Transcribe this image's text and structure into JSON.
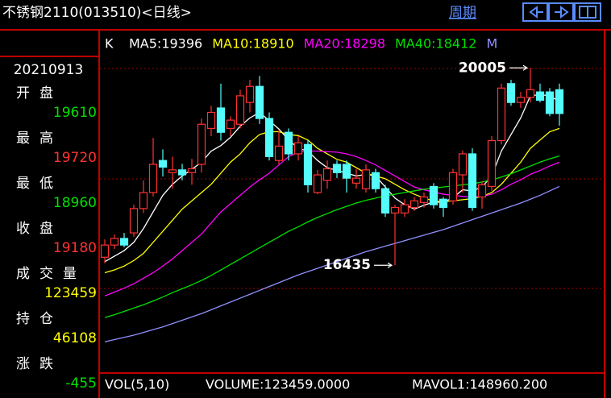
{
  "header": {
    "title": "不锈钢2110(013510)<日线>",
    "period": "周期"
  },
  "left_panel": {
    "date": "20210913",
    "rows": [
      {
        "label": "开盘",
        "value": 19610,
        "color": "#00e000"
      },
      {
        "label": "最高",
        "value": 19720,
        "color": "#ff3232"
      },
      {
        "label": "最低",
        "value": 18960,
        "color": "#00e000"
      },
      {
        "label": "收盘",
        "value": 19180,
        "color": "#ff3232"
      },
      {
        "label": "成交量",
        "value": 123459,
        "color": "#ffff00"
      },
      {
        "label": "持仓",
        "value": 46108,
        "color": "#ffff00"
      },
      {
        "label": "涨跌",
        "value": -455,
        "color": "#00e000"
      }
    ]
  },
  "chart_data": {
    "type": "candlestick",
    "legend_prefix": "K",
    "ylim": [
      14500,
      20650
    ],
    "up_color": "#ff3232",
    "down_color": "#54fcfc",
    "open": [
      16580,
      16800,
      16920,
      17020,
      17460,
      17750,
      18330,
      18110,
      18160,
      18110,
      18260,
      18910,
      19280,
      18910,
      18985,
      19380,
      19670,
      19090,
      18330,
      18840,
      18450,
      18620,
      17750,
      17970,
      18260,
      18260,
      17920,
      17820,
      18110,
      17820,
      17380,
      17380,
      17480,
      17570,
      17860,
      17630,
      17600,
      18070,
      18450,
      17670,
      17860,
      18690,
      19720,
      19380,
      19470,
      19570,
      19570,
      19610
    ],
    "high": [
      16900,
      16990,
      17020,
      17530,
      17970,
      18740,
      18530,
      18400,
      18270,
      18360,
      19090,
      19320,
      19720,
      19130,
      19610,
      19790,
      19860,
      19200,
      18880,
      18910,
      18770,
      18700,
      18160,
      18330,
      18330,
      18330,
      18180,
      18260,
      18180,
      17890,
      17530,
      17630,
      17670,
      17750,
      17920,
      17670,
      18180,
      18510,
      18550,
      17960,
      18770,
      19720,
      19790,
      19570,
      20005,
      19720,
      19640,
      19720
    ],
    "low": [
      16470,
      16730,
      16760,
      16950,
      17380,
      17680,
      18040,
      17820,
      17970,
      17890,
      18110,
      18770,
      18690,
      18770,
      18910,
      19200,
      18990,
      18330,
      18260,
      18330,
      18330,
      17750,
      17720,
      17820,
      18010,
      17750,
      17820,
      17750,
      17750,
      17310,
      16435,
      17310,
      17420,
      17480,
      17460,
      17310,
      17530,
      17750,
      17420,
      17460,
      17780,
      18620,
      19320,
      19280,
      19380,
      19380,
      19130,
      18960
    ],
    "close": [
      16800,
      16920,
      16800,
      17460,
      17750,
      18260,
      18210,
      18160,
      18070,
      18180,
      18985,
      19200,
      18840,
      19060,
      19500,
      19670,
      19090,
      18400,
      18590,
      18450,
      18650,
      17890,
      18070,
      18180,
      18110,
      18010,
      18010,
      18160,
      17820,
      17380,
      17480,
      17530,
      17600,
      17670,
      17530,
      17480,
      18110,
      18450,
      17480,
      17890,
      18690,
      19640,
      19380,
      19470,
      19610,
      19420,
      19180,
      19180
    ],
    "lines": [
      {
        "name": "MA5:19396",
        "color": "#ffffff",
        "values": [
          16500,
          16600,
          16700,
          16850,
          17100,
          17400,
          17700,
          17900,
          18050,
          18170,
          18300,
          18500,
          18600,
          18750,
          18950,
          19100,
          19200,
          19050,
          18900,
          18700,
          18550,
          18500,
          18330,
          18200,
          18150,
          18100,
          18050,
          18080,
          18050,
          17850,
          17650,
          17530,
          17450,
          17520,
          17580,
          17570,
          17660,
          17800,
          17780,
          17850,
          18050,
          18500,
          18800,
          19100,
          19500,
          19520,
          19500,
          19396
        ]
      },
      {
        "name": "MA10:18910",
        "color": "#ffff00",
        "values": [
          16300,
          16350,
          16420,
          16520,
          16650,
          16850,
          17050,
          17250,
          17450,
          17600,
          17750,
          17900,
          18100,
          18300,
          18450,
          18650,
          18800,
          18850,
          18850,
          18800,
          18780,
          18700,
          18550,
          18450,
          18350,
          18300,
          18200,
          18100,
          18050,
          18000,
          17900,
          17800,
          17720,
          17650,
          17600,
          17580,
          17600,
          17620,
          17640,
          17680,
          17750,
          17900,
          18100,
          18300,
          18550,
          18700,
          18850,
          18910
        ]
      },
      {
        "name": "MA20:18298",
        "color": "#ff00ff",
        "values": [
          15880,
          15950,
          16020,
          16100,
          16200,
          16300,
          16420,
          16550,
          16700,
          16850,
          17000,
          17200,
          17400,
          17550,
          17700,
          17850,
          17980,
          18100,
          18250,
          18400,
          18480,
          18500,
          18500,
          18490,
          18480,
          18450,
          18400,
          18330,
          18250,
          18150,
          18050,
          17950,
          17850,
          17800,
          17760,
          17720,
          17700,
          17680,
          17670,
          17680,
          17720,
          17800,
          17900,
          17980,
          18080,
          18150,
          18230,
          18298
        ]
      },
      {
        "name": "MA40:18412",
        "color": "#00e000",
        "values": [
          15490,
          15540,
          15600,
          15660,
          15720,
          15790,
          15860,
          15940,
          16010,
          16080,
          16160,
          16250,
          16350,
          16450,
          16550,
          16650,
          16750,
          16850,
          16950,
          17050,
          17130,
          17220,
          17300,
          17370,
          17440,
          17500,
          17560,
          17610,
          17650,
          17690,
          17720,
          17750,
          17780,
          17810,
          17830,
          17850,
          17870,
          17890,
          17910,
          17940,
          17980,
          18030,
          18090,
          18160,
          18230,
          18300,
          18360,
          18412
        ]
      },
      {
        "name": "M",
        "color": "#9090ff",
        "values": [
          15050,
          15090,
          15130,
          15170,
          15220,
          15270,
          15320,
          15380,
          15440,
          15500,
          15560,
          15630,
          15700,
          15770,
          15840,
          15910,
          15980,
          16050,
          16120,
          16190,
          16260,
          16320,
          16380,
          16440,
          16500,
          16560,
          16620,
          16680,
          16730,
          16780,
          16830,
          16880,
          16930,
          16980,
          17030,
          17080,
          17140,
          17200,
          17260,
          17320,
          17380,
          17440,
          17500,
          17560,
          17630,
          17700,
          17780,
          17860
        ]
      }
    ],
    "annotations": [
      {
        "text": "20005",
        "value": 20005,
        "index": 44
      },
      {
        "text": "16435",
        "value": 16435,
        "index": 30
      }
    ]
  },
  "footer": [
    "VOL(5,10)",
    "VOLUME:123459.0000",
    "MAVOL1:148960.200"
  ]
}
